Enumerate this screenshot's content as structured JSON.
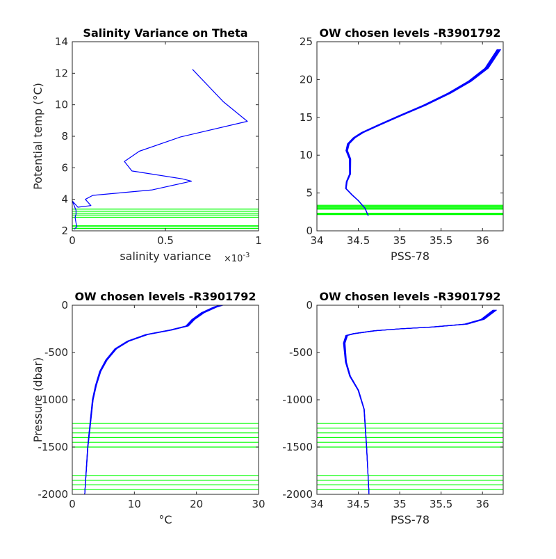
{
  "colors": {
    "profile": "#0000ff",
    "levels": "#00ff00",
    "axis": "#262626"
  },
  "chart_data": [
    {
      "type": "line",
      "title": "Salinity Variance on Theta",
      "xlabel": "salinity variance",
      "x_exponent_label": "×10",
      "x_exponent": "-3",
      "ylabel": "Potential temp (°C)",
      "xlim": [
        0,
        1
      ],
      "ylim": [
        2,
        14
      ],
      "xticks": [
        0,
        0.5,
        1
      ],
      "xtick_labels": [
        "0",
        "0.5",
        "1"
      ],
      "yticks": [
        2,
        4,
        6,
        8,
        10,
        12,
        14
      ],
      "ytick_labels": [
        "2",
        "4",
        "6",
        "8",
        "10",
        "12",
        "14"
      ],
      "series": [
        {
          "x": [
            0.645,
            0.81,
            0.94,
            0.58,
            0.36,
            0.28,
            0.32,
            0.59,
            0.64,
            0.43,
            0.11,
            0.07,
            0.1,
            0.03,
            0.0,
            0.02,
            0.02,
            0.015,
            0.02,
            0.025,
            0.01
          ],
          "y": [
            12.25,
            10.2,
            8.95,
            7.95,
            7.05,
            6.4,
            5.8,
            5.3,
            5.15,
            4.6,
            4.25,
            4.0,
            3.6,
            3.5,
            3.9,
            3.3,
            3.05,
            2.85,
            2.5,
            2.25,
            2.1
          ]
        }
      ],
      "hlines": [
        2.15,
        2.25,
        2.32,
        2.86,
        3.0,
        3.12,
        3.24,
        3.38
      ]
    },
    {
      "type": "line",
      "title": "OW chosen levels -R3901792",
      "xlabel": "PSS-78",
      "ylabel": "",
      "xlim": [
        34,
        36.25
      ],
      "ylim": [
        0,
        25
      ],
      "xticks": [
        34,
        34.5,
        35,
        35.5,
        36
      ],
      "xtick_labels": [
        "34",
        "34.5",
        "35",
        "35.5",
        "36"
      ],
      "yticks": [
        0,
        5,
        10,
        15,
        20,
        25
      ],
      "ytick_labels": [
        "0",
        "5",
        "10",
        "15",
        "20",
        "25"
      ],
      "series": [
        {
          "x": [
            34.62,
            34.58,
            34.5,
            34.42,
            34.35,
            34.36,
            34.4,
            34.4,
            34.4,
            34.36,
            34.38,
            34.45,
            34.55,
            34.75,
            35.0,
            35.3,
            35.6,
            35.85,
            36.05,
            36.2
          ],
          "y": [
            2.0,
            3.0,
            4.0,
            4.8,
            5.6,
            6.5,
            7.5,
            8.5,
            9.5,
            10.6,
            11.5,
            12.3,
            13.0,
            14.0,
            15.2,
            16.6,
            18.2,
            19.8,
            21.5,
            24.0
          ]
        }
      ],
      "hlines": [
        2.15,
        2.25,
        2.32,
        2.86,
        3.0,
        3.12,
        3.24,
        3.38
      ]
    },
    {
      "type": "line",
      "title": "OW chosen levels -R3901792",
      "xlabel": "°C",
      "ylabel": "Pressure (dbar)",
      "xlim": [
        0,
        30
      ],
      "ylim": [
        -2000,
        0
      ],
      "xticks": [
        0,
        10,
        20,
        30
      ],
      "xtick_labels": [
        "0",
        "10",
        "20",
        "30"
      ],
      "yticks": [
        -2000,
        -1500,
        -1000,
        -500,
        0
      ],
      "ytick_labels": [
        "-2000",
        "-1500",
        "-1000",
        "-500",
        "0"
      ],
      "series": [
        {
          "x": [
            2.0,
            2.2,
            2.5,
            2.9,
            3.3,
            3.8,
            4.5,
            5.5,
            7.0,
            9.0,
            12.0,
            16.0,
            18.5,
            19.5,
            21.0,
            23.0,
            24.0
          ],
          "y": [
            -2000,
            -1800,
            -1500,
            -1250,
            -1000,
            -850,
            -700,
            -580,
            -460,
            -380,
            -310,
            -260,
            -220,
            -150,
            -80,
            -20,
            0
          ]
        }
      ],
      "hlines": [
        -1250,
        -1300,
        -1350,
        -1400,
        -1450,
        -1500,
        -1800,
        -1850,
        -1900,
        -1950
      ]
    },
    {
      "type": "line",
      "title": "OW chosen levels -R3901792",
      "xlabel": "PSS-78",
      "ylabel": "",
      "xlim": [
        34,
        36.25
      ],
      "ylim": [
        -2000,
        0
      ],
      "xticks": [
        34,
        34.5,
        35,
        35.5,
        36
      ],
      "xtick_labels": [
        "34",
        "34.5",
        "35",
        "35.5",
        "36"
      ],
      "yticks": [
        -2000,
        -1500,
        -1000,
        -500,
        0
      ],
      "ytick_labels": [
        "-2000",
        "-1500",
        "-1000",
        "-500",
        "0"
      ],
      "series": [
        {
          "x": [
            34.63,
            34.6,
            34.57,
            34.5,
            34.4,
            34.35,
            34.34,
            34.33,
            34.36,
            34.45,
            34.7,
            35.0,
            35.4,
            35.8,
            36.0,
            36.15
          ],
          "y": [
            -2000,
            -1500,
            -1100,
            -900,
            -750,
            -600,
            -500,
            -400,
            -320,
            -300,
            -270,
            -250,
            -230,
            -200,
            -150,
            -50
          ]
        }
      ],
      "hlines": [
        -1250,
        -1300,
        -1350,
        -1400,
        -1450,
        -1500,
        -1800,
        -1850,
        -1900,
        -1950
      ]
    }
  ]
}
